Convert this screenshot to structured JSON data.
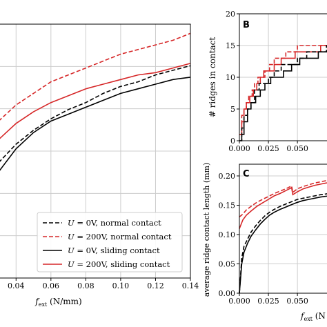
{
  "panels": [
    {
      "id": "A",
      "letter": "",
      "type": "line",
      "xlabel": "f_ext (N/mm)",
      "xlabel_main": "f",
      "xlabel_sub": "ext",
      "xlabel_unit": " (N/mm)",
      "ylabel": "",
      "xlim": [
        0.03,
        0.14
      ],
      "ylim": [
        0.0,
        1.1
      ],
      "xticks": [
        0.04,
        0.06,
        0.08,
        0.1,
        0.12,
        0.14
      ],
      "xtick_labels": [
        "0.04",
        "0.06",
        "0.08",
        "0.10",
        "0.12",
        "0.14"
      ],
      "grid": true,
      "legend": {
        "placement": "lower-right",
        "entries": [
          {
            "label": "U = 0V, normal contact",
            "math": "U",
            "rest": " = 0V, normal contact",
            "color": "#000000",
            "dash": "dashed"
          },
          {
            "label": "U = 200V, normal contact",
            "math": "U",
            "rest": " = 200V, normal contact",
            "color": "#d62728",
            "dash": "dashed"
          },
          {
            "label": "U = 0V, sliding contact",
            "math": "U",
            "rest": " = 0V, sliding contact",
            "color": "#000000",
            "dash": "solid"
          },
          {
            "label": "U = 200V, sliding contact",
            "math": "U",
            "rest": " = 200V, sliding contact",
            "color": "#d62728",
            "dash": "solid"
          }
        ]
      },
      "series": [
        {
          "color": "#d62728",
          "dash": "dashed",
          "x": [
            0.03,
            0.04,
            0.05,
            0.06,
            0.07,
            0.08,
            0.09,
            0.1,
            0.11,
            0.12,
            0.13,
            0.14
          ],
          "y": [
            0.68,
            0.75,
            0.8,
            0.85,
            0.88,
            0.91,
            0.94,
            0.97,
            0.99,
            1.01,
            1.03,
            1.06
          ]
        },
        {
          "color": "#d62728",
          "dash": "solid",
          "x": [
            0.03,
            0.04,
            0.05,
            0.06,
            0.07,
            0.08,
            0.09,
            0.1,
            0.11,
            0.12,
            0.13,
            0.14
          ],
          "y": [
            0.6,
            0.67,
            0.72,
            0.76,
            0.79,
            0.82,
            0.84,
            0.86,
            0.88,
            0.89,
            0.91,
            0.93
          ]
        },
        {
          "color": "#000000",
          "dash": "dashed",
          "x": [
            0.03,
            0.04,
            0.05,
            0.06,
            0.07,
            0.08,
            0.09,
            0.1,
            0.11,
            0.12,
            0.13,
            0.14
          ],
          "y": [
            0.5,
            0.58,
            0.64,
            0.69,
            0.73,
            0.76,
            0.8,
            0.83,
            0.85,
            0.88,
            0.9,
            0.92
          ]
        },
        {
          "color": "#000000",
          "dash": "solid",
          "x": [
            0.03,
            0.04,
            0.05,
            0.06,
            0.07,
            0.08,
            0.09,
            0.1,
            0.11,
            0.12,
            0.13,
            0.14
          ],
          "y": [
            0.46,
            0.56,
            0.63,
            0.68,
            0.71,
            0.74,
            0.77,
            0.8,
            0.82,
            0.84,
            0.86,
            0.87
          ]
        }
      ]
    },
    {
      "id": "B",
      "letter": "B",
      "type": "line",
      "ylabel": "# ridges in contact",
      "xlim": [
        0.0,
        0.085
      ],
      "ylim": [
        0,
        20
      ],
      "yticks": [
        0,
        5,
        10,
        15,
        20
      ],
      "ytick_labels": [
        "0",
        "5",
        "10",
        "15",
        "20"
      ],
      "xticks": [
        0.0,
        0.025,
        0.05
      ],
      "xtick_labels": [
        "0.000",
        "0.025",
        "0.050"
      ],
      "grid": true,
      "series": [
        {
          "color": "#d62728",
          "dash": "dashed",
          "x": [
            0.0,
            0.002,
            0.004,
            0.006,
            0.008,
            0.011,
            0.013,
            0.016,
            0.019,
            0.022,
            0.026,
            0.03,
            0.035,
            0.04,
            0.045,
            0.05,
            0.055,
            0.06,
            0.07,
            0.085
          ],
          "y": [
            1,
            4,
            5,
            6,
            7,
            8,
            9,
            10,
            10,
            11,
            12,
            13,
            13,
            14,
            14,
            15,
            15,
            15,
            15,
            15
          ]
        },
        {
          "color": "#d62728",
          "dash": "solid",
          "x": [
            0.0,
            0.002,
            0.004,
            0.006,
            0.009,
            0.012,
            0.015,
            0.018,
            0.021,
            0.025,
            0.03,
            0.036,
            0.042,
            0.048,
            0.055,
            0.062,
            0.07,
            0.085
          ],
          "y": [
            1,
            3,
            5,
            6,
            7,
            8,
            9,
            10,
            11,
            11,
            12,
            13,
            13,
            14,
            14,
            14,
            15,
            15
          ]
        },
        {
          "color": "#000000",
          "dash": "dashed",
          "x": [
            0.0,
            0.002,
            0.004,
            0.007,
            0.01,
            0.013,
            0.017,
            0.021,
            0.025,
            0.03,
            0.036,
            0.042,
            0.05,
            0.058,
            0.066,
            0.075,
            0.085
          ],
          "y": [
            0,
            2,
            4,
            5,
            6,
            8,
            9,
            9,
            10,
            11,
            12,
            12,
            13,
            14,
            14,
            15,
            15
          ]
        },
        {
          "color": "#000000",
          "dash": "solid",
          "x": [
            0.0,
            0.002,
            0.004,
            0.007,
            0.01,
            0.014,
            0.018,
            0.022,
            0.027,
            0.032,
            0.038,
            0.045,
            0.052,
            0.06,
            0.068,
            0.077,
            0.085
          ],
          "y": [
            0,
            1,
            3,
            5,
            6,
            7,
            8,
            9,
            10,
            10,
            11,
            12,
            13,
            13,
            14,
            14,
            15
          ]
        }
      ]
    },
    {
      "id": "C",
      "letter": "C",
      "type": "line",
      "ylabel": "average ridge contact length (mm)",
      "xlabel": "f_ext (N",
      "xlabel_main": "f",
      "xlabel_sub": "ext",
      "xlabel_unit": " (N",
      "xlim": [
        0.0,
        0.085
      ],
      "ylim": [
        0.0,
        0.22
      ],
      "yticks": [
        0.0,
        0.05,
        0.1,
        0.15,
        0.2
      ],
      "ytick_labels": [
        "0.00",
        "0.05",
        "0.10",
        "0.15",
        "0.20"
      ],
      "xticks": [
        0.0,
        0.025,
        0.05
      ],
      "xtick_labels": [
        "0.000",
        "0.025",
        "0.050"
      ],
      "grid": true,
      "series": [
        {
          "color": "#d62728",
          "dash": "dashed",
          "x": [
            0.0,
            0.003,
            0.006,
            0.01,
            0.015,
            0.02,
            0.025,
            0.03,
            0.035,
            0.04,
            0.045,
            0.046,
            0.05,
            0.055,
            0.06,
            0.065,
            0.07,
            0.075,
            0.085
          ],
          "y": [
            0.13,
            0.135,
            0.142,
            0.148,
            0.155,
            0.16,
            0.165,
            0.17,
            0.174,
            0.178,
            0.183,
            0.172,
            0.178,
            0.182,
            0.185,
            0.188,
            0.19,
            0.192,
            0.196
          ]
        },
        {
          "color": "#d62728",
          "dash": "solid",
          "x": [
            0.0,
            0.003,
            0.006,
            0.01,
            0.015,
            0.02,
            0.025,
            0.03,
            0.035,
            0.04,
            0.045,
            0.046,
            0.05,
            0.055,
            0.06,
            0.065,
            0.07,
            0.075,
            0.085
          ],
          "y": [
            0.11,
            0.125,
            0.133,
            0.14,
            0.148,
            0.154,
            0.16,
            0.166,
            0.17,
            0.175,
            0.18,
            0.168,
            0.173,
            0.178,
            0.181,
            0.184,
            0.186,
            0.188,
            0.192
          ]
        },
        {
          "color": "#000000",
          "dash": "dashed",
          "x": [
            0.0,
            0.002,
            0.004,
            0.007,
            0.01,
            0.014,
            0.018,
            0.022,
            0.026,
            0.03,
            0.035,
            0.04,
            0.045,
            0.05,
            0.055,
            0.06,
            0.07,
            0.085
          ],
          "y": [
            0.0,
            0.06,
            0.08,
            0.092,
            0.104,
            0.115,
            0.124,
            0.132,
            0.138,
            0.143,
            0.148,
            0.152,
            0.156,
            0.16,
            0.162,
            0.164,
            0.168,
            0.172
          ]
        },
        {
          "color": "#000000",
          "dash": "solid",
          "x": [
            0.0,
            0.002,
            0.004,
            0.007,
            0.01,
            0.014,
            0.018,
            0.022,
            0.026,
            0.03,
            0.035,
            0.04,
            0.045,
            0.05,
            0.055,
            0.06,
            0.07,
            0.085
          ],
          "y": [
            0.0,
            0.05,
            0.07,
            0.085,
            0.097,
            0.108,
            0.118,
            0.126,
            0.133,
            0.138,
            0.143,
            0.147,
            0.151,
            0.155,
            0.158,
            0.16,
            0.164,
            0.168
          ]
        }
      ]
    }
  ]
}
